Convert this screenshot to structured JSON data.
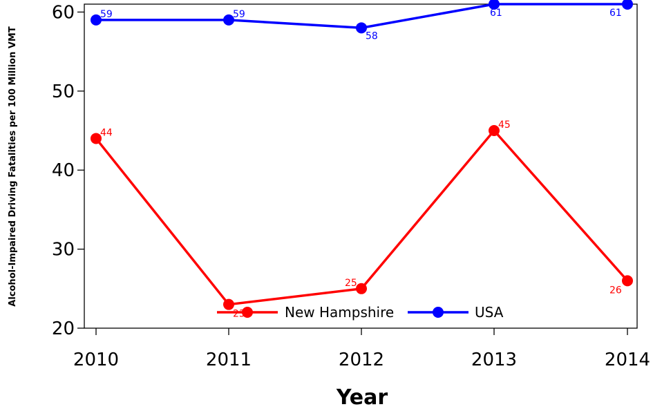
{
  "chart_data": {
    "type": "line",
    "title": "",
    "xlabel": "Year",
    "ylabel": "Alcohol-Impaired Driving Fatalities per 100 Million VMT",
    "x": [
      "2010",
      "2011",
      "2012",
      "2013",
      "2014"
    ],
    "ylim": [
      20,
      61
    ],
    "yticks": [
      20,
      30,
      40,
      50,
      60
    ],
    "grid": false,
    "legend_position": "bottom-center",
    "series": [
      {
        "name": "New Hampshire",
        "color": "#ff0000",
        "values": [
          44,
          23,
          25,
          45,
          26
        ],
        "labels": [
          "44",
          "23",
          "25",
          "45",
          "26"
        ]
      },
      {
        "name": "USA",
        "color": "#0000ff",
        "values": [
          59,
          59,
          58,
          61,
          61
        ],
        "labels": [
          "59",
          "59",
          "58",
          "61",
          "61"
        ]
      }
    ]
  }
}
